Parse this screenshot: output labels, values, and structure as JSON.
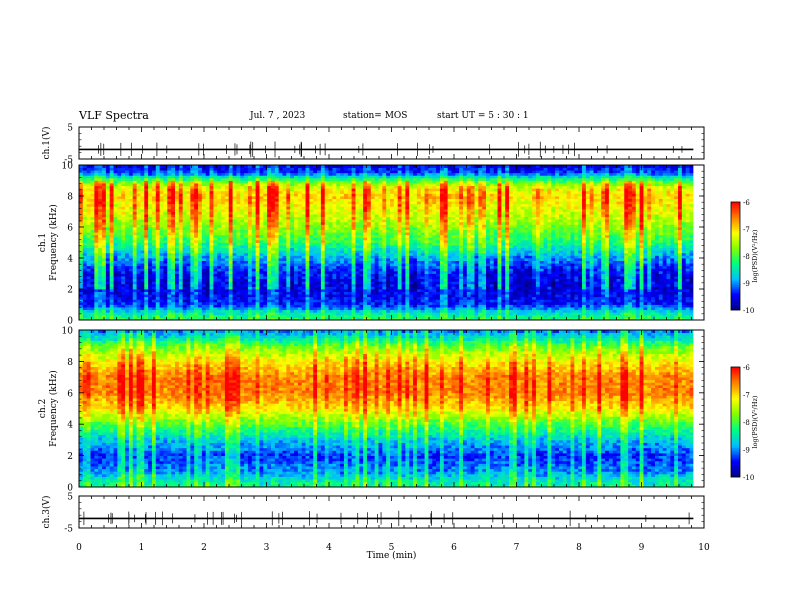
{
  "header": {
    "title": "VLF Spectra",
    "date": "Jul.  7 , 2023",
    "station": "station= MOS",
    "start": "start  UT  =   5  : 30 : 1"
  },
  "chart_data": [
    {
      "type": "line",
      "panel": "ch1-waveform",
      "ylabel": "ch.1(V)",
      "ylim": [
        -5,
        5
      ],
      "yticks": [
        "5",
        "-5"
      ],
      "series": [
        {
          "x": [
            0,
            9.83
          ],
          "values": [
            -2,
            -2
          ]
        }
      ]
    },
    {
      "type": "heatmap",
      "panel": "ch1-spectrogram",
      "ylabel": "ch.1\nFrequency  (kHz)",
      "ylim": [
        0,
        10
      ],
      "yticks": [
        "0",
        "2",
        "4",
        "6",
        "8",
        "10"
      ],
      "x_range_min": [
        0,
        9.83
      ],
      "colorbar": {
        "label": "log(PSD)(V²/Hz)",
        "range": [
          -10,
          -6
        ],
        "ticks": [
          "-6",
          "-7",
          "-8",
          "-9",
          "-10"
        ]
      },
      "profile_freq_khz": [
        0,
        0.5,
        1,
        2,
        3,
        4,
        5,
        6,
        7,
        8,
        8.5,
        9,
        9.5,
        10
      ],
      "profile_log_psd": [
        -8.2,
        -8.6,
        -9.4,
        -9.6,
        -9.5,
        -9.0,
        -8.2,
        -7.7,
        -7.3,
        -7.0,
        -7.2,
        -8.0,
        -9.3,
        -9.6
      ]
    },
    {
      "type": "heatmap",
      "panel": "ch2-spectrogram",
      "ylabel": "ch.2\nFrequency  (kHz)",
      "ylim": [
        0,
        10
      ],
      "yticks": [
        "0",
        "2",
        "4",
        "6",
        "8",
        "10"
      ],
      "x_range_min": [
        0,
        9.83
      ],
      "colorbar": {
        "label": "log(PSD)(V²/Hz)",
        "range": [
          -10,
          -6
        ],
        "ticks": [
          "-6",
          "-7",
          "-8",
          "-9",
          "-10"
        ]
      },
      "profile_freq_khz": [
        0,
        0.5,
        1,
        2,
        3,
        4,
        5,
        6,
        7,
        8,
        9,
        9.5,
        10
      ],
      "profile_log_psd": [
        -8.3,
        -8.6,
        -9.0,
        -9.3,
        -8.8,
        -8.0,
        -7.1,
        -6.6,
        -6.6,
        -7.1,
        -7.9,
        -8.6,
        -9.1
      ]
    },
    {
      "type": "line",
      "panel": "ch3-waveform",
      "ylabel": "ch.3(V)",
      "ylim": [
        -5,
        5
      ],
      "yticks": [
        "5",
        "-5"
      ],
      "series": [
        {
          "x": [
            0,
            9.83
          ],
          "values": [
            -2,
            -2
          ]
        }
      ]
    }
  ],
  "xaxis": {
    "label": "Time  (min)",
    "xlim": [
      0,
      10
    ],
    "ticks": [
      "0",
      "1",
      "2",
      "3",
      "4",
      "5",
      "6",
      "7",
      "8",
      "9",
      "10"
    ]
  },
  "colors": {
    "colormap": [
      "#000080",
      "#0000ff",
      "#00bfff",
      "#00ff80",
      "#80ff00",
      "#ffff00",
      "#ff8000",
      "#ff0000",
      "#ffffff"
    ]
  }
}
